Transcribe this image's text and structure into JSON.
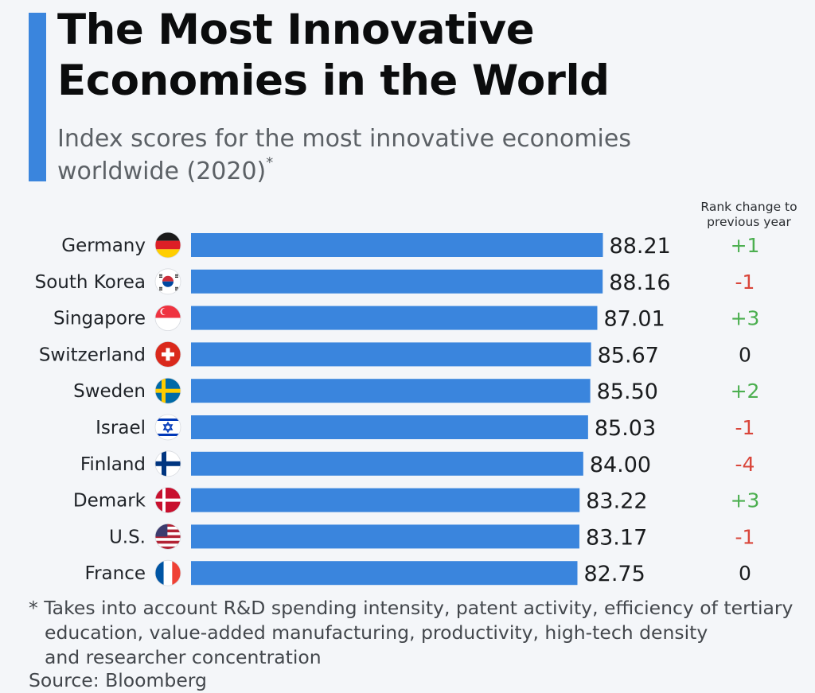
{
  "header": {
    "title_line1": "The Most Innovative",
    "title_line2": "Economies in the World",
    "subtitle_text": "Index scores for the most innovative economies worldwide (2020)",
    "subtitle_mark": "*"
  },
  "rank_header": {
    "line1": "Rank change to",
    "line2": "previous year"
  },
  "colors": {
    "bar": "#3a85dd",
    "accent": "#3a85dd",
    "positive": "#4caf50",
    "negative": "#d9463b",
    "neutral": "#1a1c1e"
  },
  "chart_data": {
    "type": "bar",
    "orientation": "horizontal",
    "categories": [
      "Germany",
      "South Korea",
      "Singapore",
      "Switzerland",
      "Sweden",
      "Israel",
      "Finland",
      "Demark",
      "U.S.",
      "France"
    ],
    "values": [
      88.21,
      88.16,
      87.01,
      85.67,
      85.5,
      85.03,
      84.0,
      83.22,
      83.17,
      82.75
    ],
    "value_labels": [
      "88.21",
      "88.16",
      "87.01",
      "85.67",
      "85.50",
      "85.03",
      "84.00",
      "83.22",
      "83.17",
      "82.75"
    ],
    "rank_change": [
      "+1",
      "-1",
      "+3",
      "0",
      "+2",
      "-1",
      "-4",
      "+3",
      "-1",
      "0"
    ],
    "flag_icons": [
      "germany-flag-icon",
      "south-korea-flag-icon",
      "singapore-flag-icon",
      "switzerland-flag-icon",
      "sweden-flag-icon",
      "israel-flag-icon",
      "finland-flag-icon",
      "denmark-flag-icon",
      "us-flag-icon",
      "france-flag-icon"
    ],
    "grid": false,
    "legend": "none"
  },
  "footnote": {
    "line1": "* Takes into account R&D spending intensity, patent activity, efficiency of tertiary",
    "line2": "education, value-added manufacturing, productivity, high-tech density",
    "line3": "and researcher concentration"
  },
  "source": "Source: Bloomberg"
}
